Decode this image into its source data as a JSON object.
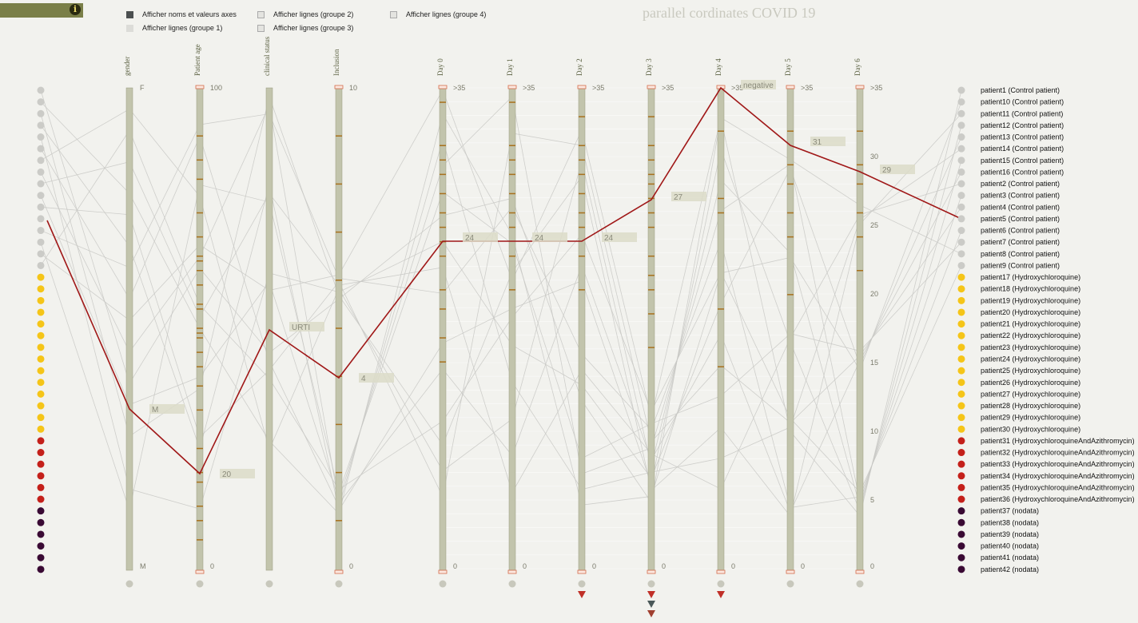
{
  "header": {
    "title": "parallel cordinates COVID 19",
    "info_icon_glyph": "i",
    "toggles": [
      {
        "label": "Afficher noms et valeurs axes",
        "checked": true
      },
      {
        "label": "Afficher lignes (groupe 1)",
        "checked": false
      },
      {
        "label": "Afficher lignes (groupe 2)",
        "checked": false
      },
      {
        "label": "Afficher lignes (groupe 3)",
        "checked": false
      },
      {
        "label": "Afficher lignes (groupe 4)",
        "checked": false
      }
    ]
  },
  "colors": {
    "control": "#cbcbc7",
    "hydroxychloroquine": "#f5c518",
    "azithromycin": "#c4201a",
    "nodata": "#3a0a34",
    "highlight": "#a01818",
    "axis_fill": "#c2c4ac",
    "tick_mark": "#a8701c"
  },
  "chart_data": {
    "type": "parallel_coordinates",
    "axes": [
      {
        "name": "gender",
        "kind": "categorical",
        "ticks": [
          "F",
          "M"
        ]
      },
      {
        "name": "Patient age",
        "kind": "numeric",
        "ticks": [
          "100",
          "0"
        ],
        "range": [
          0,
          100
        ]
      },
      {
        "name": "clinical status",
        "kind": "categorical",
        "ticks": []
      },
      {
        "name": "Inclusion",
        "kind": "numeric",
        "ticks": [
          "10",
          "0"
        ],
        "range": [
          0,
          10
        ]
      },
      {
        "name": "Day 0",
        "kind": "numeric",
        "ticks": [
          ">35",
          "0"
        ],
        "range": [
          0,
          35
        ]
      },
      {
        "name": "Day 1",
        "kind": "numeric",
        "ticks": [
          ">35",
          "0"
        ],
        "range": [
          0,
          35
        ]
      },
      {
        "name": "Day 2",
        "kind": "numeric",
        "ticks": [
          ">35",
          "0"
        ],
        "range": [
          0,
          35
        ]
      },
      {
        "name": "Day 3",
        "kind": "numeric",
        "ticks": [
          ">35",
          "0"
        ],
        "range": [
          0,
          35
        ]
      },
      {
        "name": "Day 4",
        "kind": "numeric",
        "ticks": [
          ">35",
          "0"
        ],
        "range": [
          0,
          35
        ]
      },
      {
        "name": "Day 5",
        "kind": "numeric",
        "ticks": [
          ">35",
          "0"
        ],
        "range": [
          0,
          35
        ]
      },
      {
        "name": "Day 6",
        "kind": "numeric",
        "ticks": [
          ">35",
          "0",
          "5",
          "10",
          "15",
          "20",
          "25",
          "30"
        ],
        "range": [
          0,
          35
        ]
      }
    ],
    "highlighted": {
      "patient": "patient5 (Control patient)",
      "values": [
        {
          "axis": "gender",
          "label": "M"
        },
        {
          "axis": "Patient age",
          "label": "20"
        },
        {
          "axis": "clinical status",
          "label": "URTI"
        },
        {
          "axis": "Inclusion",
          "label": "4"
        },
        {
          "axis": "Day 0",
          "label": "24"
        },
        {
          "axis": "Day 1",
          "label": "24"
        },
        {
          "axis": "Day 2",
          "label": "24"
        },
        {
          "axis": "Day 3",
          "label": "27"
        },
        {
          "axis": "Day 4",
          "label": "negative"
        },
        {
          "axis": "Day 5",
          "label": "31"
        },
        {
          "axis": "Day 6",
          "label": "29"
        }
      ]
    },
    "patients": [
      {
        "name": "patient1 (Control patient)",
        "group": "control"
      },
      {
        "name": "patient10 (Control patient)",
        "group": "control"
      },
      {
        "name": "patient11 (Control patient)",
        "group": "control"
      },
      {
        "name": "patient12 (Control patient)",
        "group": "control"
      },
      {
        "name": "patient13 (Control patient)",
        "group": "control"
      },
      {
        "name": "patient14 (Control patient)",
        "group": "control"
      },
      {
        "name": "patient15 (Control patient)",
        "group": "control"
      },
      {
        "name": "patient16 (Control patient)",
        "group": "control"
      },
      {
        "name": "patient2 (Control patient)",
        "group": "control"
      },
      {
        "name": "patient3 (Control patient)",
        "group": "control"
      },
      {
        "name": "patient4 (Control patient)",
        "group": "control"
      },
      {
        "name": "patient5 (Control patient)",
        "group": "control"
      },
      {
        "name": "patient6 (Control patient)",
        "group": "control"
      },
      {
        "name": "patient7 (Control patient)",
        "group": "control"
      },
      {
        "name": "patient8 (Control patient)",
        "group": "control"
      },
      {
        "name": "patient9 (Control patient)",
        "group": "control"
      },
      {
        "name": "patient17 (Hydroxychloroquine)",
        "group": "hydroxychloroquine"
      },
      {
        "name": "patient18 (Hydroxychloroquine)",
        "group": "hydroxychloroquine"
      },
      {
        "name": "patient19 (Hydroxychloroquine)",
        "group": "hydroxychloroquine"
      },
      {
        "name": "patient20 (Hydroxychloroquine)",
        "group": "hydroxychloroquine"
      },
      {
        "name": "patient21 (Hydroxychloroquine)",
        "group": "hydroxychloroquine"
      },
      {
        "name": "patient22 (Hydroxychloroquine)",
        "group": "hydroxychloroquine"
      },
      {
        "name": "patient23 (Hydroxychloroquine)",
        "group": "hydroxychloroquine"
      },
      {
        "name": "patient24 (Hydroxychloroquine)",
        "group": "hydroxychloroquine"
      },
      {
        "name": "patient25 (Hydroxychloroquine)",
        "group": "hydroxychloroquine"
      },
      {
        "name": "patient26 (Hydroxychloroquine)",
        "group": "hydroxychloroquine"
      },
      {
        "name": "patient27 (Hydroxychloroquine)",
        "group": "hydroxychloroquine"
      },
      {
        "name": "patient28 (Hydroxychloroquine)",
        "group": "hydroxychloroquine"
      },
      {
        "name": "patient29 (Hydroxychloroquine)",
        "group": "hydroxychloroquine"
      },
      {
        "name": "patient30 (Hydroxychloroquine)",
        "group": "hydroxychloroquine"
      },
      {
        "name": "patient31 (HydroxychloroquineAndAzithromycin)",
        "group": "azithromycin"
      },
      {
        "name": "patient32 (HydroxychloroquineAndAzithromycin)",
        "group": "azithromycin"
      },
      {
        "name": "patient33 (HydroxychloroquineAndAzithromycin)",
        "group": "azithromycin"
      },
      {
        "name": "patient34 (HydroxychloroquineAndAzithromycin)",
        "group": "azithromycin"
      },
      {
        "name": "patient35 (HydroxychloroquineAndAzithromycin)",
        "group": "azithromycin"
      },
      {
        "name": "patient36 (HydroxychloroquineAndAzithromycin)",
        "group": "azithromycin"
      },
      {
        "name": "patient37 (nodata)",
        "group": "nodata"
      },
      {
        "name": "patient38 (nodata)",
        "group": "nodata"
      },
      {
        "name": "patient39 (nodata)",
        "group": "nodata"
      },
      {
        "name": "patient40 (nodata)",
        "group": "nodata"
      },
      {
        "name": "patient41 (nodata)",
        "group": "nodata"
      },
      {
        "name": "patient42 (nodata)",
        "group": "nodata"
      }
    ]
  }
}
